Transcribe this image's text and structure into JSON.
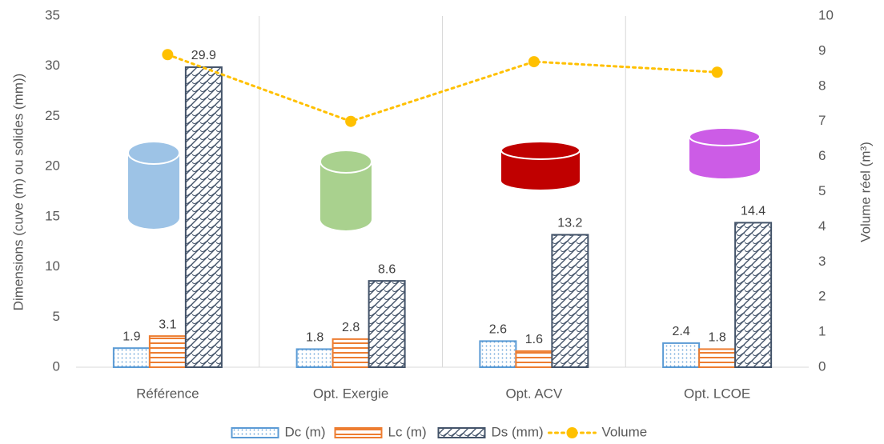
{
  "chart_data": {
    "type": "bar",
    "categories": [
      "Référence",
      "Opt. Exergie",
      "Opt. ACV",
      "Opt. LCOE"
    ],
    "series": [
      {
        "name": "Dc (m)",
        "color": "#5b9bd5",
        "pattern": "dots",
        "values": [
          1.9,
          1.8,
          2.6,
          2.4
        ]
      },
      {
        "name": "Lc (m)",
        "color": "#ed7d31",
        "pattern": "hlines",
        "values": [
          3.1,
          2.8,
          1.6,
          1.8
        ]
      },
      {
        "name": "Ds (mm)",
        "color": "#44546a",
        "pattern": "weave",
        "values": [
          29.9,
          8.6,
          13.2,
          14.4
        ]
      },
      {
        "name": "Volume",
        "color": "#ffc000",
        "type": "line",
        "axis": "y2",
        "values": [
          8.9,
          7.0,
          8.7,
          8.4
        ]
      }
    ],
    "y_label": "Dimensions (cuve (m) ou solides (mm))",
    "y2_label": "Volume réel (m³)",
    "ylim": [
      0,
      35
    ],
    "yticks": [
      0,
      5,
      10,
      15,
      20,
      25,
      30,
      35
    ],
    "y2lim": [
      0,
      10
    ],
    "y2ticks": [
      0,
      1,
      2,
      3,
      4,
      5,
      6,
      7,
      8,
      9,
      10
    ],
    "legend": "bottom"
  }
}
